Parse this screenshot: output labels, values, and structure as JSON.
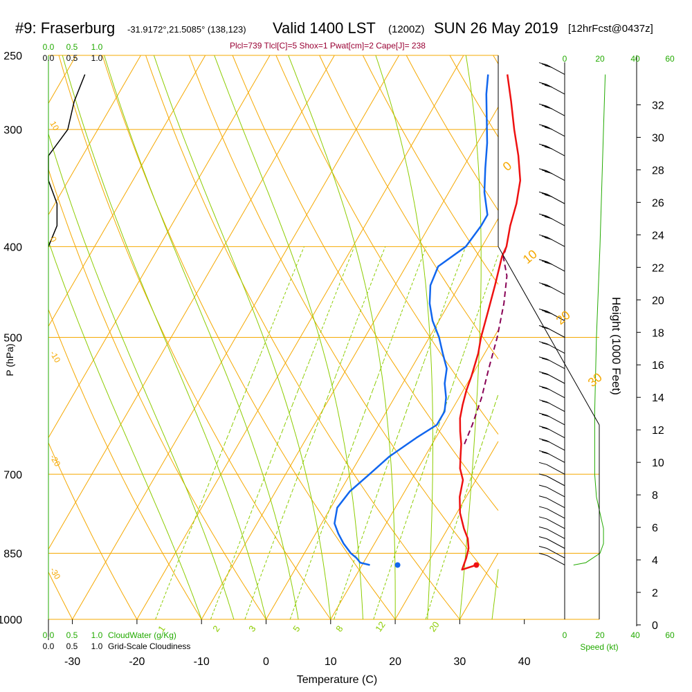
{
  "header": {
    "station": "#9: Fraserburg",
    "coords": "-31.9172°,21.5085° (138,123)",
    "valid": "Valid 1400 LST",
    "zulu": "(1200Z)",
    "date": "SUN 26 May 2019",
    "forecast": "[12hrFcst@0437z]",
    "stats": "Plcl=739 Tlcl[C]=5 Shox=1 Pwat[cm]=2 Cape[J]= 238"
  },
  "colors": {
    "isobar": "#f5a800",
    "isotherm": "#f5a800",
    "dry_adiabat": "#f5a800",
    "moist_adiabat": "#8ccc00",
    "mixing_ratio": "#8ccc00",
    "temperature": "#ee1111",
    "dewpoint": "#1166ee",
    "parcel": "#880055",
    "cloudwater": "#22aa00",
    "speed": "#22aa00"
  },
  "axes": {
    "xlabel": "Temperature (C)",
    "ylabel": "P (hPa)",
    "right_label": "Height (1000 Feet)",
    "x_ticks": [
      "-30",
      "-20",
      "-10",
      "0",
      "10",
      "20",
      "30",
      "40"
    ],
    "pressure_ticks": [
      "250",
      "300",
      "400",
      "500",
      "700",
      "850",
      "1000"
    ],
    "height_ticks": [
      "32",
      "30",
      "28",
      "26",
      "24",
      "22",
      "20",
      "18",
      "16",
      "14",
      "12",
      "10",
      "8",
      "6",
      "4",
      "2",
      "0"
    ],
    "isotherm_labels": [
      "0",
      "10",
      "20",
      "30"
    ],
    "left_temp_labels": [
      "10",
      "0",
      "-10",
      "-20",
      "-30"
    ],
    "mixing_ratio_labels": [
      "1",
      "2",
      "3",
      "5",
      "8",
      "12",
      "20"
    ],
    "cloud_scale": [
      "0.0",
      "0.5",
      "1.0"
    ],
    "cloud_scale_top_green": [
      "0.0",
      "0.5",
      "1.0"
    ],
    "cloudwater_label": "CloudWater (g/Kg)",
    "cloudiness_label": "Grid-Scale Cloudiness",
    "speed_ticks": [
      "0",
      "20",
      "40",
      "60"
    ],
    "speed_label": "Speed (kt)"
  },
  "chart_data": {
    "type": "skew-t",
    "title": "#9: Fraserburg",
    "xlabel": "Temperature (C)",
    "ylabel": "P (hPa)",
    "xlim": [
      -35,
      47
    ],
    "ylim_pressure": [
      1000,
      250
    ],
    "surface_pressure": 875,
    "series": [
      {
        "name": "temperature",
        "points": [
          [
            875,
            27.7
          ],
          [
            885,
            25.9
          ],
          [
            860,
            25.5
          ],
          [
            840,
            25.0
          ],
          [
            820,
            24.0
          ],
          [
            800,
            22.5
          ],
          [
            770,
            20.5
          ],
          [
            740,
            19.0
          ],
          [
            710,
            18.0
          ],
          [
            690,
            16.5
          ],
          [
            670,
            15.5
          ],
          [
            650,
            14.5
          ],
          [
            630,
            13.2
          ],
          [
            610,
            12.0
          ],
          [
            590,
            11.2
          ],
          [
            570,
            10.5
          ],
          [
            550,
            10.0
          ],
          [
            520,
            9.0
          ],
          [
            500,
            8.0
          ],
          [
            470,
            6.8
          ],
          [
            440,
            5.5
          ],
          [
            410,
            4.0
          ],
          [
            400,
            3.8
          ],
          [
            380,
            2.5
          ],
          [
            360,
            1.5
          ],
          [
            340,
            0.0
          ],
          [
            320,
            -2.5
          ],
          [
            300,
            -5.5
          ],
          [
            280,
            -8.5
          ],
          [
            262,
            -11.5
          ]
        ]
      },
      {
        "name": "dewpoint",
        "points": [
          [
            875,
            11.2
          ],
          [
            870,
            9.5
          ],
          [
            860,
            8.5
          ],
          [
            850,
            7.2
          ],
          [
            830,
            5.2
          ],
          [
            810,
            3.5
          ],
          [
            790,
            2.0
          ],
          [
            760,
            1.0
          ],
          [
            730,
            1.5
          ],
          [
            700,
            3.0
          ],
          [
            670,
            4.5
          ],
          [
            640,
            7.0
          ],
          [
            620,
            9.0
          ],
          [
            600,
            9.0
          ],
          [
            580,
            8.0
          ],
          [
            560,
            6.5
          ],
          [
            540,
            5.5
          ],
          [
            520,
            3.5
          ],
          [
            500,
            1.5
          ],
          [
            480,
            -1.0
          ],
          [
            460,
            -3.0
          ],
          [
            440,
            -4.5
          ],
          [
            420,
            -5.0
          ],
          [
            400,
            -2.5
          ],
          [
            380,
            -2.0
          ],
          [
            370,
            -2.0
          ],
          [
            350,
            -4.5
          ],
          [
            330,
            -6.5
          ],
          [
            310,
            -8.5
          ],
          [
            290,
            -11.0
          ],
          [
            275,
            -13.0
          ],
          [
            262,
            -14.5
          ]
        ]
      },
      {
        "name": "parcel",
        "points": [
          [
            650,
            15.0
          ],
          [
            620,
            14.5
          ],
          [
            580,
            13.5
          ],
          [
            540,
            12.0
          ],
          [
            500,
            10.5
          ],
          [
            460,
            8.5
          ],
          [
            430,
            6.5
          ],
          [
            410,
            4.2
          ],
          [
            400,
            3.8
          ]
        ]
      },
      {
        "name": "cloud_fraction",
        "points": [
          [
            262,
            0.85
          ],
          [
            280,
            0.6
          ],
          [
            300,
            0.45
          ],
          [
            320,
            0.0
          ],
          [
            340,
            0.0
          ],
          [
            360,
            0.2
          ],
          [
            380,
            0.2
          ],
          [
            400,
            0.0
          ]
        ]
      },
      {
        "name": "wind_speed_kt",
        "points": [
          [
            875,
            5
          ],
          [
            870,
            12
          ],
          [
            860,
            16
          ],
          [
            850,
            20
          ],
          [
            830,
            22
          ],
          [
            800,
            22
          ],
          [
            770,
            20
          ],
          [
            740,
            18
          ],
          [
            700,
            17
          ],
          [
            650,
            17
          ],
          [
            600,
            17
          ],
          [
            500,
            18
          ],
          [
            400,
            20
          ],
          [
            300,
            22
          ],
          [
            262,
            23
          ]
        ]
      }
    ],
    "grid": true
  }
}
